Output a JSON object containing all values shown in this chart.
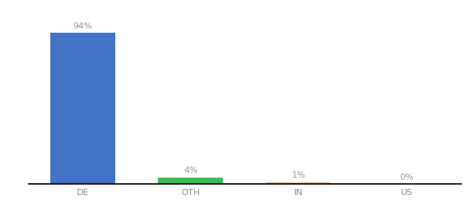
{
  "categories": [
    "DE",
    "OTH",
    "IN",
    "US"
  ],
  "values": [
    94,
    4,
    1,
    0
  ],
  "labels": [
    "94%",
    "4%",
    "1%",
    "0%"
  ],
  "bar_colors": [
    "#4472c4",
    "#3dba4e",
    "#e8a020",
    "#e8a020"
  ],
  "background_color": "#ffffff",
  "label_color": "#999999",
  "label_fontsize": 9,
  "tick_fontsize": 9,
  "tick_color": "#888888",
  "bar_width": 0.6,
  "ylim": [
    0,
    108
  ],
  "xlim": [
    -0.5,
    3.5
  ],
  "figsize": [
    6.8,
    3.0
  ],
  "dpi": 100
}
